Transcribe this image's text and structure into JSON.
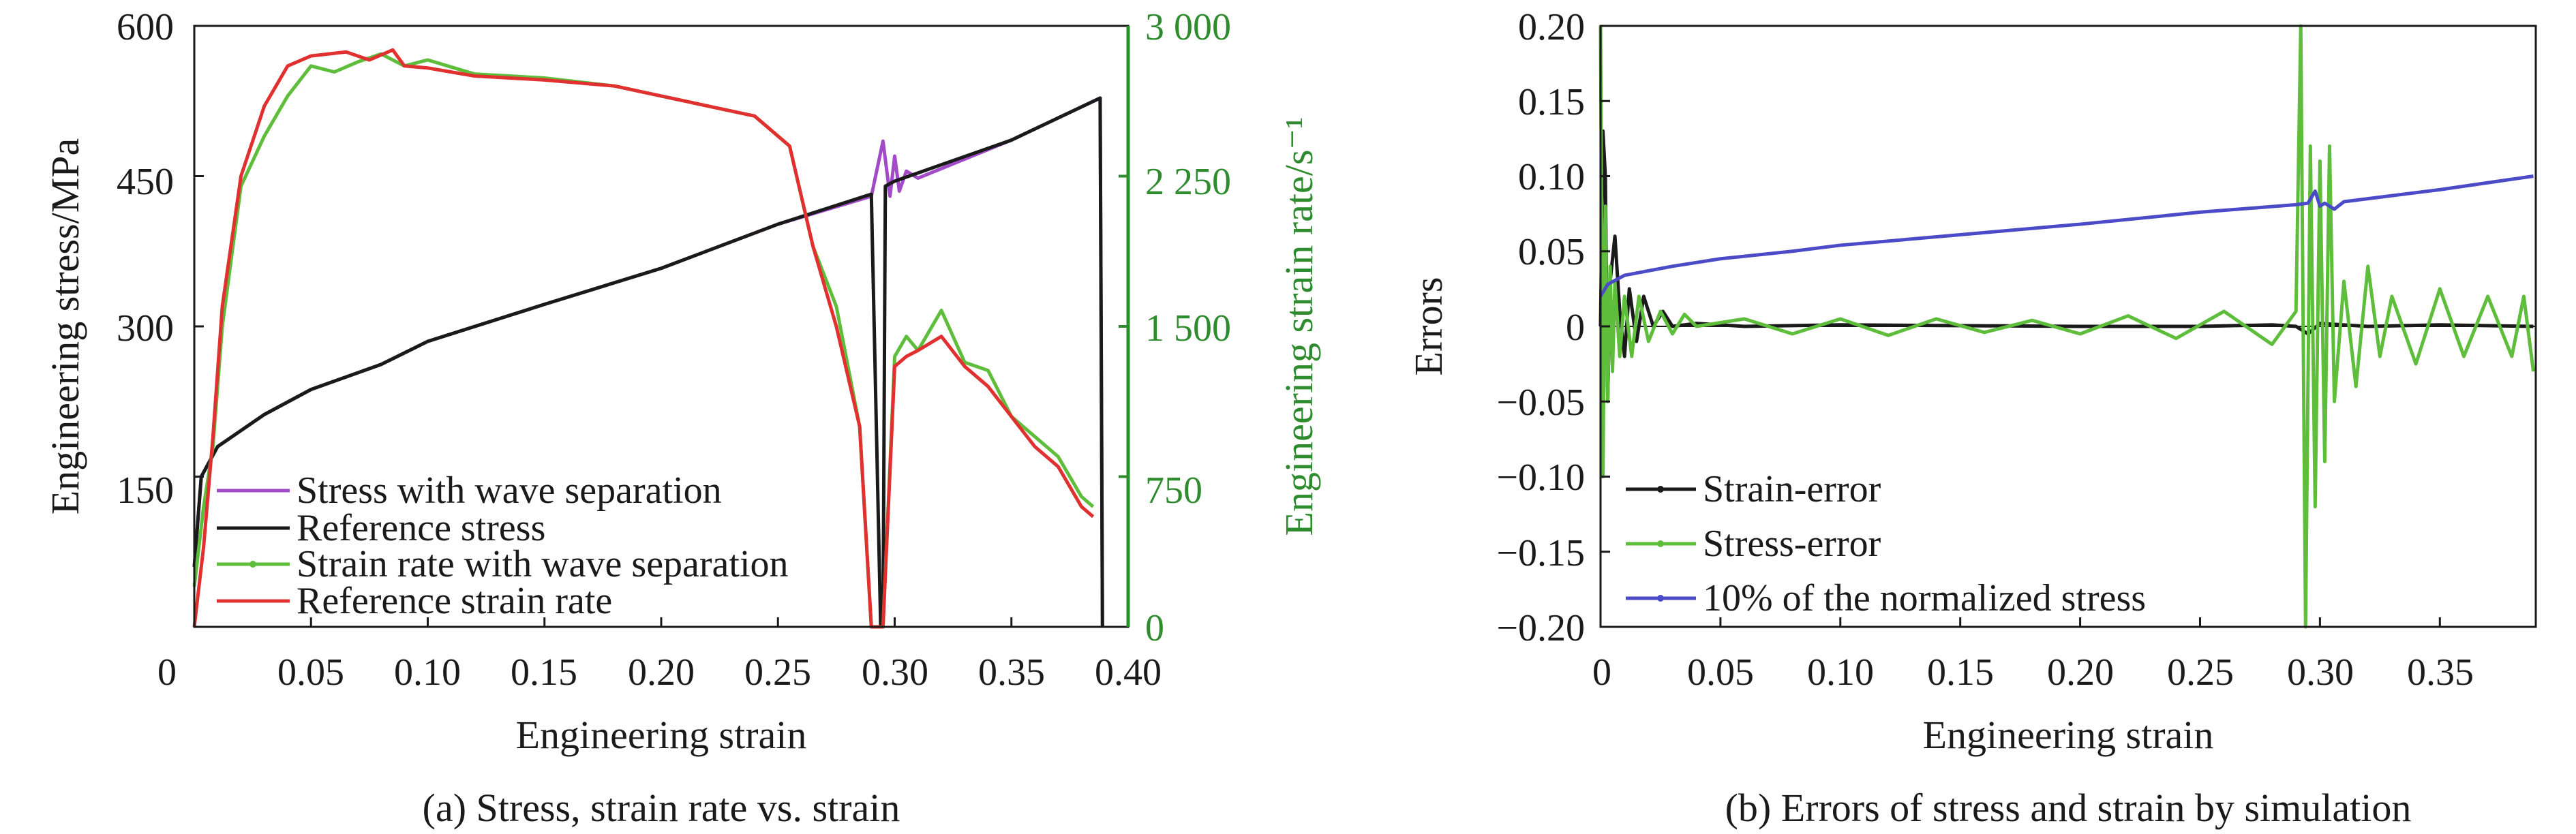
{
  "chart_data": [
    {
      "type": "line",
      "caption": "(a) Stress, strain rate vs. strain",
      "xlabel": "Engineering strain",
      "ylabel": "Engineering stress/MPa",
      "y2label": "Engineering strain rate/s⁻¹",
      "xlim": [
        0,
        0.4
      ],
      "ylim": [
        0,
        600
      ],
      "y2lim": [
        0,
        3000
      ],
      "x_ticks": [
        "0",
        "0.05",
        "0.10",
        "0.15",
        "0.20",
        "0.25",
        "0.30",
        "0.35",
        "0.40"
      ],
      "y_ticks": [
        "150",
        "300",
        "450",
        "600"
      ],
      "y2_ticks": [
        "0",
        "750",
        "1 500",
        "2 250",
        "3 000"
      ],
      "legend_position": "lower-left",
      "series": [
        {
          "name": "Stress with wave separation",
          "axis": "left",
          "color": "#a24bc9",
          "x": [
            0,
            0.003,
            0.01,
            0.03,
            0.05,
            0.08,
            0.1,
            0.15,
            0.2,
            0.25,
            0.29,
            0.295,
            0.298,
            0.3,
            0.302,
            0.305,
            0.31,
            0.35,
            0.388,
            0.389
          ],
          "y": [
            60,
            150,
            180,
            212,
            237,
            262,
            285,
            322,
            358,
            402,
            430,
            485,
            430,
            470,
            435,
            455,
            448,
            486,
            528,
            0
          ]
        },
        {
          "name": "Reference stress",
          "axis": "left",
          "color": "#1a1a1a",
          "x": [
            0,
            0.003,
            0.01,
            0.03,
            0.05,
            0.08,
            0.1,
            0.15,
            0.2,
            0.25,
            0.29,
            0.294,
            0.295,
            0.296,
            0.3,
            0.35,
            0.388,
            0.389
          ],
          "y": [
            60,
            150,
            180,
            212,
            237,
            262,
            285,
            322,
            358,
            402,
            432,
            0,
            0,
            440,
            445,
            486,
            528,
            0
          ]
        },
        {
          "name": "Strain rate with wave separation",
          "axis": "right",
          "color": "#5fbd3c",
          "x": [
            0,
            0.004,
            0.008,
            0.012,
            0.02,
            0.03,
            0.04,
            0.05,
            0.06,
            0.07,
            0.08,
            0.09,
            0.1,
            0.12,
            0.15,
            0.18,
            0.2,
            0.24,
            0.255,
            0.265,
            0.275,
            0.285,
            0.29,
            0.295,
            0.3,
            0.305,
            0.31,
            0.32,
            0.33,
            0.34,
            0.35,
            0.36,
            0.37,
            0.38,
            0.385
          ],
          "y": [
            200,
            600,
            900,
            1500,
            2200,
            2450,
            2650,
            2800,
            2770,
            2820,
            2860,
            2800,
            2830,
            2760,
            2740,
            2700,
            2650,
            2550,
            2400,
            1900,
            1600,
            1000,
            0,
            0,
            1350,
            1450,
            1380,
            1580,
            1320,
            1280,
            1050,
            950,
            850,
            650,
            600
          ]
        },
        {
          "name": "Reference strain rate",
          "axis": "right",
          "color": "#e03030",
          "x": [
            0,
            0.004,
            0.008,
            0.012,
            0.02,
            0.03,
            0.04,
            0.05,
            0.065,
            0.075,
            0.085,
            0.09,
            0.1,
            0.12,
            0.15,
            0.18,
            0.2,
            0.24,
            0.255,
            0.265,
            0.275,
            0.285,
            0.29,
            0.295,
            0.3,
            0.305,
            0.31,
            0.32,
            0.33,
            0.34,
            0.35,
            0.36,
            0.37,
            0.38,
            0.385
          ],
          "y": [
            0,
            400,
            950,
            1600,
            2250,
            2600,
            2800,
            2850,
            2870,
            2830,
            2880,
            2800,
            2790,
            2750,
            2730,
            2700,
            2650,
            2550,
            2400,
            1900,
            1500,
            1000,
            0,
            0,
            1300,
            1350,
            1380,
            1450,
            1300,
            1200,
            1050,
            900,
            800,
            600,
            550
          ]
        }
      ]
    },
    {
      "type": "line",
      "caption": "(b) Errors of stress and strain by simulation",
      "xlabel": "Engineering strain",
      "ylabel": "Errors",
      "xlim": [
        0,
        0.39
      ],
      "ylim": [
        -0.2,
        0.2
      ],
      "x_ticks": [
        "0",
        "0.05",
        "0.10",
        "0.15",
        "0.20",
        "0.25",
        "0.30",
        "0.35"
      ],
      "y_ticks": [
        "0.20",
        "0.15",
        "0.10",
        "0.05",
        "0",
        "−0.05",
        "−0.10",
        "−0.15",
        "−0.20"
      ],
      "legend_position": "lower-left",
      "series": [
        {
          "name": "Strain-error",
          "color": "#1a1a1a",
          "x": [
            0,
            0.001,
            0.002,
            0.003,
            0.004,
            0.006,
            0.008,
            0.01,
            0.012,
            0.015,
            0.018,
            0.022,
            0.026,
            0.03,
            0.04,
            0.06,
            0.1,
            0.2,
            0.25,
            0.28,
            0.29,
            0.295,
            0.3,
            0.32,
            0.35,
            0.389
          ],
          "y": [
            0,
            0.13,
            0.1,
            -0.05,
            0.03,
            0.06,
            0.01,
            -0.02,
            0.025,
            -0.01,
            0.02,
            0.0,
            0.01,
            0.0,
            0.002,
            0.0,
            0.001,
            0.0,
            0.0,
            0.001,
            0.0,
            -0.005,
            0.002,
            0.0,
            0.001,
            0.0
          ]
        },
        {
          "name": "Stress-error",
          "color": "#5fbd3c",
          "x": [
            0,
            0.001,
            0.002,
            0.003,
            0.004,
            0.005,
            0.006,
            0.008,
            0.01,
            0.013,
            0.016,
            0.02,
            0.025,
            0.03,
            0.035,
            0.04,
            0.06,
            0.08,
            0.1,
            0.12,
            0.14,
            0.16,
            0.18,
            0.2,
            0.22,
            0.24,
            0.26,
            0.28,
            0.29,
            0.292,
            0.294,
            0.296,
            0.298,
            0.3,
            0.302,
            0.304,
            0.306,
            0.31,
            0.315,
            0.32,
            0.325,
            0.33,
            0.34,
            0.35,
            0.36,
            0.37,
            0.38,
            0.385,
            0.389
          ],
          "y": [
            0.2,
            -0.1,
            0.08,
            -0.05,
            0.04,
            -0.03,
            0.03,
            -0.02,
            0.02,
            -0.02,
            0.02,
            -0.01,
            0.01,
            -0.005,
            0.008,
            0.0,
            0.005,
            -0.005,
            0.005,
            -0.006,
            0.005,
            -0.004,
            0.004,
            -0.005,
            0.007,
            -0.008,
            0.01,
            -0.012,
            0.01,
            0.2,
            -0.2,
            0.12,
            -0.12,
            0.11,
            -0.09,
            0.12,
            -0.05,
            0.03,
            -0.04,
            0.04,
            -0.02,
            0.02,
            -0.025,
            0.025,
            -0.02,
            0.02,
            -0.02,
            0.02,
            -0.03
          ]
        },
        {
          "name": "10% of the normalized stress",
          "color": "#4b4bc8",
          "x": [
            0,
            0.003,
            0.01,
            0.03,
            0.05,
            0.08,
            0.1,
            0.15,
            0.2,
            0.25,
            0.29,
            0.295,
            0.298,
            0.3,
            0.302,
            0.306,
            0.31,
            0.35,
            0.389
          ],
          "y": [
            0.02,
            0.028,
            0.034,
            0.04,
            0.045,
            0.05,
            0.054,
            0.061,
            0.068,
            0.076,
            0.081,
            0.082,
            0.09,
            0.08,
            0.082,
            0.078,
            0.083,
            0.091,
            0.1
          ]
        }
      ]
    }
  ]
}
